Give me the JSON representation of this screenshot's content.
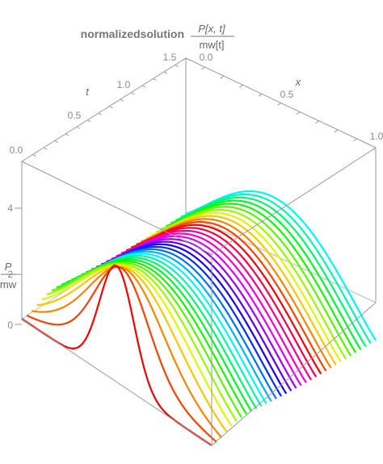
{
  "chart_data": {
    "type": "line",
    "title": {
      "prefix": "normalizedsolution",
      "numerator": "P[x, t]",
      "denominator": "mw[t]"
    },
    "axes": {
      "x": {
        "label": "x",
        "range": [
          0,
          1
        ],
        "ticks": [
          "0.0",
          "0.5",
          "1.0"
        ]
      },
      "t": {
        "label": "t",
        "range": [
          0,
          1.5
        ],
        "ticks": [
          "0.0",
          "0.5",
          "1.0",
          "1.5"
        ]
      },
      "z": {
        "label_numerator": "P",
        "label_denominator": "mw",
        "range": [
          0,
          5
        ],
        "ticks": [
          "0",
          "2",
          "4"
        ]
      }
    },
    "box": true,
    "grid": false,
    "series_description": {
      "count": 34,
      "t_start": 0.0,
      "t_end": 1.5,
      "initial_peak_x": 0.5,
      "initial_peak_value": 4.0,
      "final_profile": "sine-like arch over x in [0,1], peak about 2.6",
      "color_order": [
        "red",
        "orange",
        "yellow",
        "green",
        "cyan",
        "blue",
        "magenta",
        "red",
        "yellow",
        "green",
        "cyan"
      ]
    }
  }
}
